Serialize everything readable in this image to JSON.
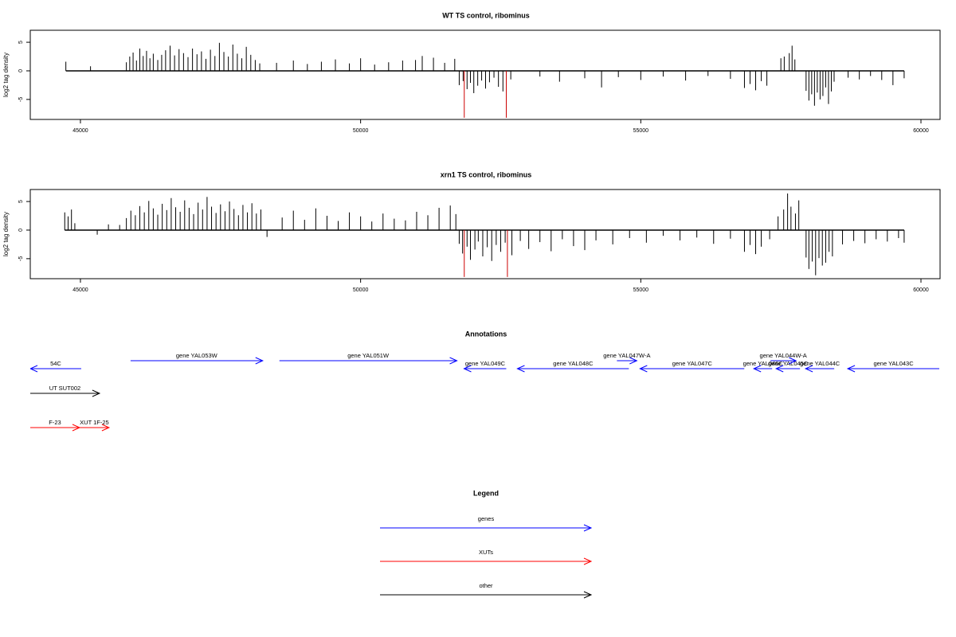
{
  "chart_data": [
    {
      "type": "spike",
      "title": "WT TS control, ribominus",
      "y_label": "log2 tag density",
      "xlim": [
        44105,
        60341
      ],
      "ylim": [
        -8.5,
        7.1
      ],
      "xticks": [
        45000,
        50000,
        55000,
        60000
      ],
      "yticks": [
        -5,
        0,
        5
      ],
      "color": "#000000",
      "x": [
        44740,
        45180,
        45820,
        45880,
        45940,
        46000,
        46060,
        46120,
        46180,
        46240,
        46300,
        46380,
        46450,
        46520,
        46600,
        46680,
        46760,
        46840,
        46920,
        47000,
        47080,
        47160,
        47240,
        47320,
        47400,
        47480,
        47560,
        47640,
        47720,
        47800,
        47880,
        47960,
        48040,
        48120,
        48200,
        48500,
        48800,
        49050,
        49300,
        49550,
        49800,
        50000,
        50250,
        50500,
        50750,
        50980,
        51100,
        51300,
        51500,
        51680,
        51760,
        51830,
        51900,
        51960,
        52020,
        52090,
        52160,
        52230,
        52300,
        52380,
        52460,
        52540,
        52680,
        53200,
        53550,
        54000,
        54300,
        54600,
        55000,
        55400,
        55800,
        56200,
        56600,
        56850,
        56950,
        57050,
        57150,
        57250,
        57500,
        57560,
        57650,
        57700,
        57750,
        57950,
        58000,
        58050,
        58100,
        58150,
        58200,
        58250,
        58300,
        58350,
        58400,
        58450,
        58700,
        58900,
        59100,
        59300,
        59500,
        59700
      ],
      "values": [
        1.6,
        0.8,
        1.5,
        2.5,
        3.2,
        1.8,
        3.9,
        2.6,
        3.5,
        2.2,
        3.0,
        1.9,
        2.8,
        3.6,
        4.4,
        2.7,
        3.8,
        3.1,
        2.4,
        3.9,
        2.9,
        3.4,
        2.1,
        3.7,
        2.6,
        4.9,
        3.3,
        2.5,
        4.6,
        3.0,
        2.2,
        4.2,
        2.8,
        1.9,
        1.3,
        1.4,
        1.8,
        1.2,
        1.6,
        2.0,
        1.3,
        2.2,
        1.1,
        1.5,
        1.8,
        1.9,
        2.6,
        2.3,
        1.4,
        2.1,
        -2.5,
        -1.8,
        -3.2,
        -2.1,
        -3.9,
        -2.6,
        -1.7,
        -3.1,
        -2.0,
        -1.2,
        -2.8,
        -3.6,
        -1.5,
        -1.0,
        -1.9,
        -1.3,
        -2.9,
        -1.1,
        -1.6,
        -1.0,
        -1.7,
        -0.9,
        -1.4,
        -3.0,
        -2.3,
        -3.4,
        -1.8,
        -2.6,
        2.2,
        2.5,
        3.1,
        4.4,
        2.0,
        -3.5,
        -5.2,
        -4.1,
        -6.1,
        -3.8,
        -5.0,
        -4.4,
        -2.9,
        -5.8,
        -3.6,
        -1.9,
        -1.2,
        -1.5,
        -0.9,
        -1.6,
        -2.5,
        -1.3
      ],
      "highlight": {
        "color": "#cc0000",
        "x": [
          51850,
          52600
        ],
        "values": [
          -8.2,
          -8.2
        ]
      }
    },
    {
      "type": "spike",
      "title": "xrn1 TS control, ribominus",
      "y_label": "log2 tag density",
      "xlim": [
        44105,
        60341
      ],
      "ylim": [
        -8.5,
        7.1
      ],
      "xticks": [
        45000,
        50000,
        55000,
        60000
      ],
      "yticks": [
        -5,
        0,
        5
      ],
      "color": "#000000",
      "x": [
        44720,
        44780,
        44840,
        44900,
        45300,
        45500,
        45700,
        45820,
        45900,
        45980,
        46060,
        46140,
        46220,
        46300,
        46380,
        46460,
        46540,
        46620,
        46700,
        46780,
        46860,
        46940,
        47020,
        47100,
        47180,
        47260,
        47340,
        47420,
        47500,
        47580,
        47660,
        47740,
        47820,
        47900,
        47980,
        48060,
        48140,
        48220,
        48330,
        48600,
        48800,
        49000,
        49200,
        49400,
        49600,
        49800,
        50000,
        50200,
        50400,
        50600,
        50800,
        51000,
        51200,
        51400,
        51600,
        51700,
        51760,
        51820,
        51900,
        51960,
        52040,
        52100,
        52180,
        52260,
        52340,
        52420,
        52500,
        52580,
        52700,
        52850,
        53000,
        53200,
        53400,
        53600,
        53800,
        54000,
        54200,
        54500,
        54800,
        55100,
        55400,
        55700,
        56000,
        56300,
        56600,
        56850,
        56950,
        57050,
        57150,
        57300,
        57450,
        57550,
        57620,
        57680,
        57760,
        57820,
        57950,
        58000,
        58060,
        58120,
        58180,
        58240,
        58300,
        58360,
        58420,
        58600,
        58800,
        59000,
        59200,
        59400,
        59600,
        59700
      ],
      "values": [
        3.1,
        2.4,
        3.6,
        1.2,
        -0.8,
        1.0,
        0.9,
        2.1,
        3.4,
        2.6,
        4.2,
        3.1,
        5.1,
        3.8,
        2.7,
        4.6,
        3.5,
        5.6,
        4.0,
        3.2,
        5.2,
        3.9,
        2.8,
        4.8,
        3.6,
        5.8,
        4.1,
        3.0,
        4.5,
        3.3,
        5.0,
        3.7,
        2.6,
        4.4,
        3.1,
        4.7,
        2.9,
        3.6,
        -1.2,
        2.2,
        3.4,
        1.8,
        3.8,
        2.5,
        1.6,
        3.1,
        2.4,
        1.5,
        2.9,
        2.0,
        1.7,
        3.2,
        2.6,
        3.9,
        4.3,
        2.8,
        -2.4,
        -4.1,
        -2.9,
        -5.2,
        -3.4,
        -2.0,
        -4.6,
        -3.0,
        -5.4,
        -2.6,
        -3.8,
        -2.2,
        -4.4,
        -1.9,
        -3.3,
        -2.1,
        -3.7,
        -1.6,
        -2.8,
        -3.5,
        -1.8,
        -2.5,
        -1.4,
        -2.2,
        -1.0,
        -1.8,
        -1.3,
        -2.4,
        -1.5,
        -3.8,
        -2.6,
        -4.2,
        -2.9,
        -1.6,
        2.4,
        3.6,
        6.4,
        4.1,
        2.9,
        5.2,
        -4.8,
        -6.8,
        -5.5,
        -7.9,
        -4.9,
        -6.2,
        -5.7,
        -3.8,
        -4.6,
        -2.5,
        -1.9,
        -2.3,
        -1.6,
        -2.0,
        -1.4,
        -2.2
      ],
      "highlight": {
        "color": "#cc0000",
        "x": [
          51850,
          52620
        ],
        "values": [
          -8.2,
          -8.2
        ]
      }
    }
  ],
  "annotations": {
    "title": "Annotations",
    "xlim": [
      44105,
      60341
    ],
    "tracks": [
      {
        "color": "#0000ff",
        "features": [
          {
            "label": "54C",
            "start": 44105,
            "end": 45014,
            "strand": "-"
          },
          {
            "label": "gene YAL053W",
            "start": 45895,
            "end": 48253,
            "strand": "+"
          },
          {
            "label": "gene YAL051W",
            "start": 48551,
            "end": 51719,
            "strand": "+"
          },
          {
            "label": "gene YAL049C",
            "start": 51846,
            "end": 52599,
            "strand": "-"
          },
          {
            "label": "gene YAL048C",
            "start": 52798,
            "end": 54787,
            "strand": "-"
          },
          {
            "label": "gene YAL047W-A",
            "start": 54574,
            "end": 54929,
            "strand": "+"
          },
          {
            "label": "gene YAL047C",
            "start": 54986,
            "end": 56847,
            "strand": "-"
          },
          {
            "label": "gene YAL046C",
            "start": 57017,
            "end": 57344,
            "strand": "-"
          },
          {
            "label": "gene YAL045C",
            "start": 57415,
            "end": 57841,
            "strand": "-"
          },
          {
            "label": "gene YAL044W-A",
            "start": 57315,
            "end": 57770,
            "strand": "+"
          },
          {
            "label": "gene YAL044C",
            "start": 57940,
            "end": 58452,
            "strand": "-"
          },
          {
            "label": "gene YAL043C",
            "start": 58693,
            "end": 60327,
            "strand": "-"
          }
        ]
      },
      {
        "color": "#000000",
        "features": [
          {
            "label": "UT SUT002",
            "start": 44105,
            "end": 45341,
            "strand": "+"
          }
        ]
      },
      {
        "color": "#ff0000",
        "features": [
          {
            "label": "F-23",
            "start": 44105,
            "end": 44986,
            "strand": "+"
          },
          {
            "label": "XUT 1F-25",
            "start": 44986,
            "end": 45511,
            "strand": "+"
          }
        ]
      }
    ]
  },
  "legend": {
    "title": "Legend",
    "items": [
      {
        "label": "genes",
        "color": "#0000ff"
      },
      {
        "label": "XUTs",
        "color": "#ff0000"
      },
      {
        "label": "other",
        "color": "#000000"
      }
    ]
  }
}
